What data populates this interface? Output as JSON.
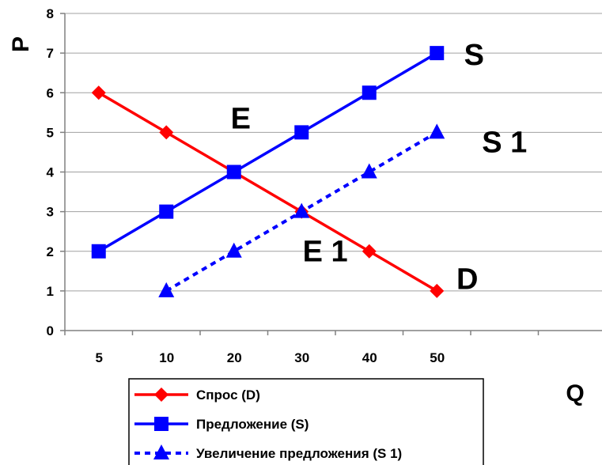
{
  "chart_data": {
    "type": "line",
    "title": "",
    "xlabel": "Q",
    "ylabel": "P",
    "categories": [
      "5",
      "10",
      "20",
      "30",
      "40",
      "50"
    ],
    "ylim": [
      0,
      8
    ],
    "yticks": [
      0,
      1,
      2,
      3,
      4,
      5,
      6,
      7,
      8
    ],
    "grid": true,
    "legend_position": "bottom",
    "series": [
      {
        "name": "Спрос (D)",
        "color": "#ff0000",
        "marker": "diamond",
        "dashed": false,
        "points": [
          [
            0,
            6
          ],
          [
            1,
            5
          ],
          [
            2,
            4
          ],
          [
            3,
            3
          ],
          [
            4,
            2
          ],
          [
            5,
            1
          ]
        ]
      },
      {
        "name": "Предложение (S)",
        "color": "#0000ff",
        "marker": "square",
        "dashed": false,
        "points": [
          [
            0,
            2
          ],
          [
            1,
            3
          ],
          [
            2,
            4
          ],
          [
            3,
            5
          ],
          [
            4,
            6
          ],
          [
            5,
            7
          ]
        ]
      },
      {
        "name": "Увеличение предложения (S 1)",
        "color": "#0000ff",
        "marker": "triangle",
        "dashed": true,
        "points": [
          [
            1,
            1
          ],
          [
            2,
            2
          ],
          [
            3,
            3
          ],
          [
            4,
            4
          ],
          [
            5,
            5
          ]
        ]
      }
    ],
    "annotations": [
      {
        "text": "S",
        "x": 5.55,
        "y": 6.7
      },
      {
        "text": "E",
        "x": 2.1,
        "y": 5.1
      },
      {
        "text": "S 1",
        "x": 6.0,
        "y": 4.5
      },
      {
        "text": "E 1",
        "x": 3.35,
        "y": 1.75
      },
      {
        "text": "D",
        "x": 5.45,
        "y": 1.05
      }
    ]
  }
}
